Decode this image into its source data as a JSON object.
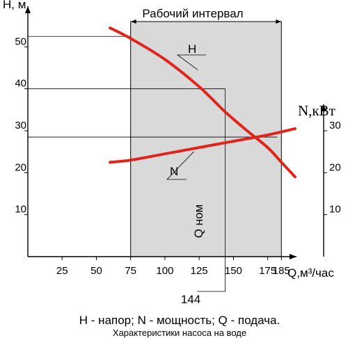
{
  "chart_data": {
    "type": "line",
    "y_left_label": "H, м",
    "y_right_label": "N,кВт",
    "x_label": "Q,м³/час",
    "x_ticks": [
      25,
      50,
      75,
      100,
      125,
      150,
      175,
      185
    ],
    "y_left_ticks": [
      10,
      20,
      30,
      40,
      50
    ],
    "y_right_ticks": [
      10,
      20,
      30
    ],
    "xlim": [
      0,
      195
    ],
    "ylim": [
      0,
      60
    ],
    "working_interval": {
      "label": "Рабочий интервал",
      "from": 75,
      "to": 185
    },
    "nominal": {
      "label": "Q ном",
      "value": "144",
      "q": 144
    },
    "series": [
      {
        "name": "H",
        "color": "#e0231b",
        "points": [
          [
            60,
            54.5
          ],
          [
            75,
            52
          ],
          [
            100,
            47
          ],
          [
            125,
            40.5
          ],
          [
            144,
            34.5
          ],
          [
            160,
            30
          ],
          [
            175,
            26
          ],
          [
            185,
            22.5
          ],
          [
            195,
            19
          ]
        ]
      },
      {
        "name": "N",
        "color": "#e0231b",
        "points": [
          [
            60,
            22.5
          ],
          [
            75,
            23
          ],
          [
            100,
            24.5
          ],
          [
            125,
            26
          ],
          [
            150,
            27.5
          ],
          [
            175,
            29
          ],
          [
            195,
            30.5
          ]
        ]
      }
    ],
    "reference_lines": [
      {
        "y": 52.5,
        "to_q": 75
      },
      {
        "y": 40,
        "to_q": 144
      },
      {
        "y": 28.5,
        "to_q": 182
      }
    ]
  },
  "caption": {
    "legend": "H - напор; N - мощность; Q - подача.",
    "subtitle": "Характеристики насоса на воде"
  }
}
